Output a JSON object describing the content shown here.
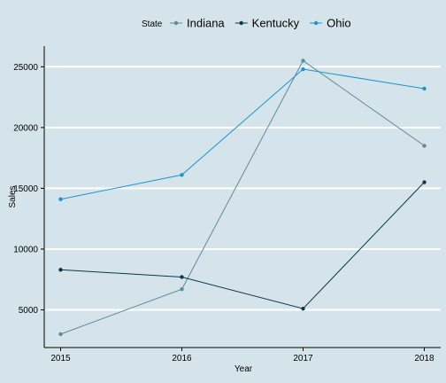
{
  "chart_data": {
    "type": "line",
    "title": "",
    "xlabel": "Year",
    "ylabel": "Sales",
    "x": [
      2015,
      2016,
      2017,
      2018
    ],
    "x_tick_labels": [
      "2015",
      "2016",
      "2017",
      "2018"
    ],
    "y_ticks": [
      5000,
      10000,
      15000,
      20000,
      25000
    ],
    "y_tick_labels": [
      "5000",
      "10000",
      "15000",
      "20000",
      "25000"
    ],
    "ylim": [
      1900,
      26700
    ],
    "grid": "horizontal",
    "legend": {
      "title": "State",
      "position": "top",
      "entries": [
        "Indiana",
        "Kentucky",
        "Ohio"
      ]
    },
    "series": [
      {
        "name": "Indiana",
        "color": "#5e8a99",
        "values": [
          3000,
          6700,
          25500,
          18500
        ]
      },
      {
        "name": "Kentucky",
        "color": "#063a4c",
        "values": [
          8300,
          7700,
          5100,
          15500
        ]
      },
      {
        "name": "Ohio",
        "color": "#1a97c9",
        "values": [
          14100,
          16100,
          24800,
          23200
        ]
      }
    ]
  }
}
